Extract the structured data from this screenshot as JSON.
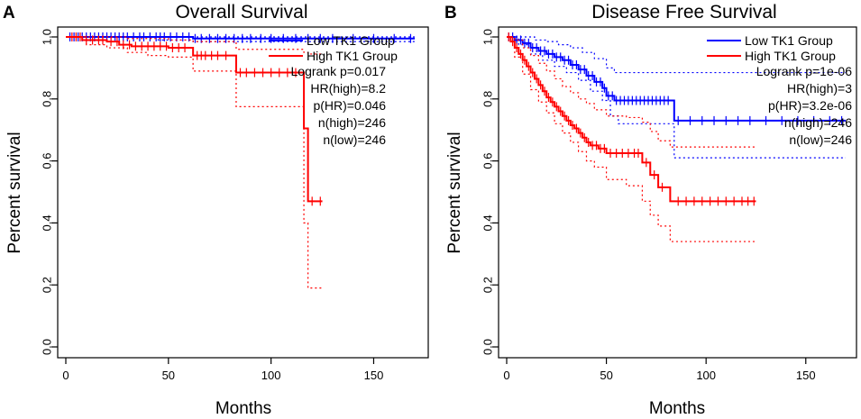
{
  "chart_data": [
    {
      "type": "line",
      "panel": "A",
      "title": "Overall Survival",
      "xlabel": "Months",
      "ylabel": "Percent survival",
      "xlim": [
        0,
        170
      ],
      "ylim": [
        0,
        1.05
      ],
      "xticks": [
        "0",
        "50",
        "100",
        "150"
      ],
      "yticks": [
        "0.0",
        "0.2",
        "0.4",
        "0.6",
        "0.8",
        "1.0"
      ],
      "legend": [
        "Low TK1 Group",
        "High TK1 Group"
      ],
      "stats": [
        "Logrank p=0.017",
        "HR(high)=8.2",
        "p(HR)=0.046",
        "n(high)=246",
        "n(low)=246"
      ],
      "colors": {
        "low": "#0000ff",
        "high": "#ff0000"
      },
      "series": [
        {
          "name": "Low TK1 Group",
          "color": "#0000ff",
          "steps": [
            [
              0,
              1.0
            ],
            [
              60,
              1.0
            ],
            [
              62,
              0.995
            ],
            [
              170,
              0.995
            ]
          ],
          "upper": [
            [
              0,
              1.0
            ],
            [
              170,
              1.0
            ]
          ],
          "lower": [
            [
              0,
              1.0
            ],
            [
              45,
              0.99
            ],
            [
              62,
              0.985
            ],
            [
              170,
              0.985
            ]
          ],
          "censor": [
            2,
            4,
            6,
            8,
            10,
            12,
            14,
            16,
            18,
            20,
            22,
            24,
            26,
            28,
            30,
            33,
            36,
            38,
            41,
            44,
            46,
            48,
            51,
            54,
            57,
            60,
            63,
            66,
            70,
            74,
            78,
            82,
            86,
            90,
            95,
            100,
            106,
            112,
            118,
            124,
            130,
            140,
            150,
            160,
            168
          ]
        },
        {
          "name": "High TK1 Group",
          "color": "#ff0000",
          "steps": [
            [
              0,
              1.0
            ],
            [
              8,
              0.99
            ],
            [
              20,
              0.985
            ],
            [
              26,
              0.975
            ],
            [
              32,
              0.97
            ],
            [
              50,
              0.965
            ],
            [
              62,
              0.94
            ],
            [
              83,
              0.885
            ],
            [
              116,
              0.705
            ],
            [
              118,
              0.47
            ],
            [
              125,
              0.47
            ]
          ],
          "upper": [
            [
              0,
              1.0
            ],
            [
              20,
              1.0
            ],
            [
              30,
              0.995
            ],
            [
              50,
              0.99
            ],
            [
              62,
              0.985
            ],
            [
              83,
              0.96
            ],
            [
              116,
              0.95
            ],
            [
              118,
              0.945
            ],
            [
              125,
              0.945
            ]
          ],
          "lower": [
            [
              0,
              1.0
            ],
            [
              10,
              0.975
            ],
            [
              20,
              0.965
            ],
            [
              30,
              0.95
            ],
            [
              40,
              0.94
            ],
            [
              50,
              0.935
            ],
            [
              62,
              0.89
            ],
            [
              83,
              0.775
            ],
            [
              116,
              0.4
            ],
            [
              118,
              0.19
            ],
            [
              125,
              0.19
            ]
          ],
          "censor": [
            3,
            5,
            7,
            10,
            13,
            16,
            18,
            22,
            25,
            28,
            31,
            34,
            37,
            40,
            43,
            46,
            49,
            52,
            55,
            58,
            64,
            66,
            68,
            71,
            74,
            78,
            85,
            88,
            92,
            96,
            100,
            104,
            108,
            112,
            120,
            124
          ]
        }
      ]
    },
    {
      "type": "line",
      "panel": "B",
      "title": "Disease Free Survival",
      "xlabel": "Months",
      "ylabel": "Percent survival",
      "xlim": [
        0,
        170
      ],
      "ylim": [
        0,
        1.05
      ],
      "xticks": [
        "0",
        "50",
        "100",
        "150"
      ],
      "yticks": [
        "0.0",
        "0.2",
        "0.4",
        "0.6",
        "0.8",
        "1.0"
      ],
      "legend": [
        "Low TK1 Group",
        "High TK1 Group"
      ],
      "stats": [
        "Logrank p=1e-06",
        "HR(high)=3",
        "p(HR)=3.2e-06",
        "n(high)=246",
        "n(low)=246"
      ],
      "colors": {
        "low": "#0000ff",
        "high": "#ff0000"
      },
      "series": [
        {
          "name": "Low TK1 Group",
          "color": "#0000ff",
          "steps": [
            [
              0,
              1.0
            ],
            [
              4,
              0.99
            ],
            [
              8,
              0.98
            ],
            [
              12,
              0.965
            ],
            [
              16,
              0.955
            ],
            [
              20,
              0.945
            ],
            [
              24,
              0.935
            ],
            [
              28,
              0.925
            ],
            [
              32,
              0.91
            ],
            [
              36,
              0.895
            ],
            [
              40,
              0.875
            ],
            [
              44,
              0.855
            ],
            [
              48,
              0.835
            ],
            [
              50,
              0.81
            ],
            [
              54,
              0.795
            ],
            [
              65,
              0.795
            ],
            [
              84,
              0.73
            ],
            [
              170,
              0.73
            ]
          ],
          "upper": [
            [
              0,
              1.0
            ],
            [
              8,
              1.0
            ],
            [
              14,
              0.99
            ],
            [
              20,
              0.985
            ],
            [
              26,
              0.975
            ],
            [
              32,
              0.965
            ],
            [
              38,
              0.95
            ],
            [
              44,
              0.93
            ],
            [
              50,
              0.9
            ],
            [
              54,
              0.885
            ],
            [
              84,
              0.885
            ],
            [
              170,
              0.885
            ]
          ],
          "lower": [
            [
              0,
              1.0
            ],
            [
              6,
              0.975
            ],
            [
              12,
              0.945
            ],
            [
              18,
              0.925
            ],
            [
              24,
              0.905
            ],
            [
              30,
              0.885
            ],
            [
              36,
              0.86
            ],
            [
              42,
              0.825
            ],
            [
              48,
              0.795
            ],
            [
              52,
              0.745
            ],
            [
              56,
              0.72
            ],
            [
              84,
              0.61
            ],
            [
              170,
              0.61
            ]
          ],
          "censor": [
            1,
            3,
            5,
            7,
            9,
            11,
            13,
            15,
            17,
            19,
            21,
            23,
            25,
            27,
            29,
            31,
            33,
            35,
            37,
            39,
            41,
            43,
            45,
            47,
            49,
            51,
            53,
            55,
            57,
            59,
            61,
            63,
            65,
            67,
            69,
            71,
            73,
            75,
            77,
            79,
            81,
            86,
            92,
            98,
            104,
            110,
            116,
            122,
            130,
            138,
            146,
            154,
            162,
            168
          ]
        },
        {
          "name": "High TK1 Group",
          "color": "#ff0000",
          "steps": [
            [
              0,
              1.0
            ],
            [
              2,
              0.985
            ],
            [
              4,
              0.965
            ],
            [
              6,
              0.945
            ],
            [
              8,
              0.925
            ],
            [
              10,
              0.905
            ],
            [
              12,
              0.885
            ],
            [
              14,
              0.865
            ],
            [
              16,
              0.845
            ],
            [
              18,
              0.825
            ],
            [
              20,
              0.805
            ],
            [
              22,
              0.79
            ],
            [
              24,
              0.775
            ],
            [
              26,
              0.76
            ],
            [
              28,
              0.745
            ],
            [
              30,
              0.73
            ],
            [
              32,
              0.715
            ],
            [
              34,
              0.705
            ],
            [
              36,
              0.69
            ],
            [
              38,
              0.675
            ],
            [
              40,
              0.66
            ],
            [
              42,
              0.65
            ],
            [
              46,
              0.64
            ],
            [
              50,
              0.625
            ],
            [
              60,
              0.625
            ],
            [
              68,
              0.595
            ],
            [
              72,
              0.555
            ],
            [
              76,
              0.515
            ],
            [
              82,
              0.47
            ],
            [
              125,
              0.47
            ]
          ],
          "upper": [
            [
              0,
              1.0
            ],
            [
              4,
              0.99
            ],
            [
              8,
              0.965
            ],
            [
              12,
              0.94
            ],
            [
              16,
              0.915
            ],
            [
              20,
              0.89
            ],
            [
              24,
              0.865
            ],
            [
              28,
              0.84
            ],
            [
              32,
              0.82
            ],
            [
              36,
              0.8
            ],
            [
              40,
              0.785
            ],
            [
              44,
              0.765
            ],
            [
              50,
              0.745
            ],
            [
              60,
              0.74
            ],
            [
              68,
              0.725
            ],
            [
              72,
              0.695
            ],
            [
              76,
              0.665
            ],
            [
              82,
              0.645
            ],
            [
              125,
              0.645
            ]
          ],
          "lower": [
            [
              0,
              1.0
            ],
            [
              4,
              0.935
            ],
            [
              8,
              0.88
            ],
            [
              12,
              0.83
            ],
            [
              16,
              0.79
            ],
            [
              20,
              0.755
            ],
            [
              24,
              0.72
            ],
            [
              28,
              0.69
            ],
            [
              32,
              0.66
            ],
            [
              36,
              0.63
            ],
            [
              40,
              0.6
            ],
            [
              44,
              0.58
            ],
            [
              50,
              0.54
            ],
            [
              60,
              0.52
            ],
            [
              68,
              0.47
            ],
            [
              72,
              0.425
            ],
            [
              76,
              0.39
            ],
            [
              82,
              0.34
            ],
            [
              125,
              0.34
            ]
          ],
          "censor": [
            1,
            3,
            5,
            7,
            9,
            11,
            13,
            15,
            17,
            19,
            21,
            23,
            25,
            27,
            29,
            31,
            33,
            35,
            37,
            39,
            41,
            43,
            45,
            47,
            49,
            52,
            55,
            58,
            61,
            64,
            66,
            70,
            74,
            78,
            86,
            90,
            94,
            98,
            102,
            106,
            110,
            114,
            118,
            121,
            124
          ]
        }
      ]
    }
  ]
}
